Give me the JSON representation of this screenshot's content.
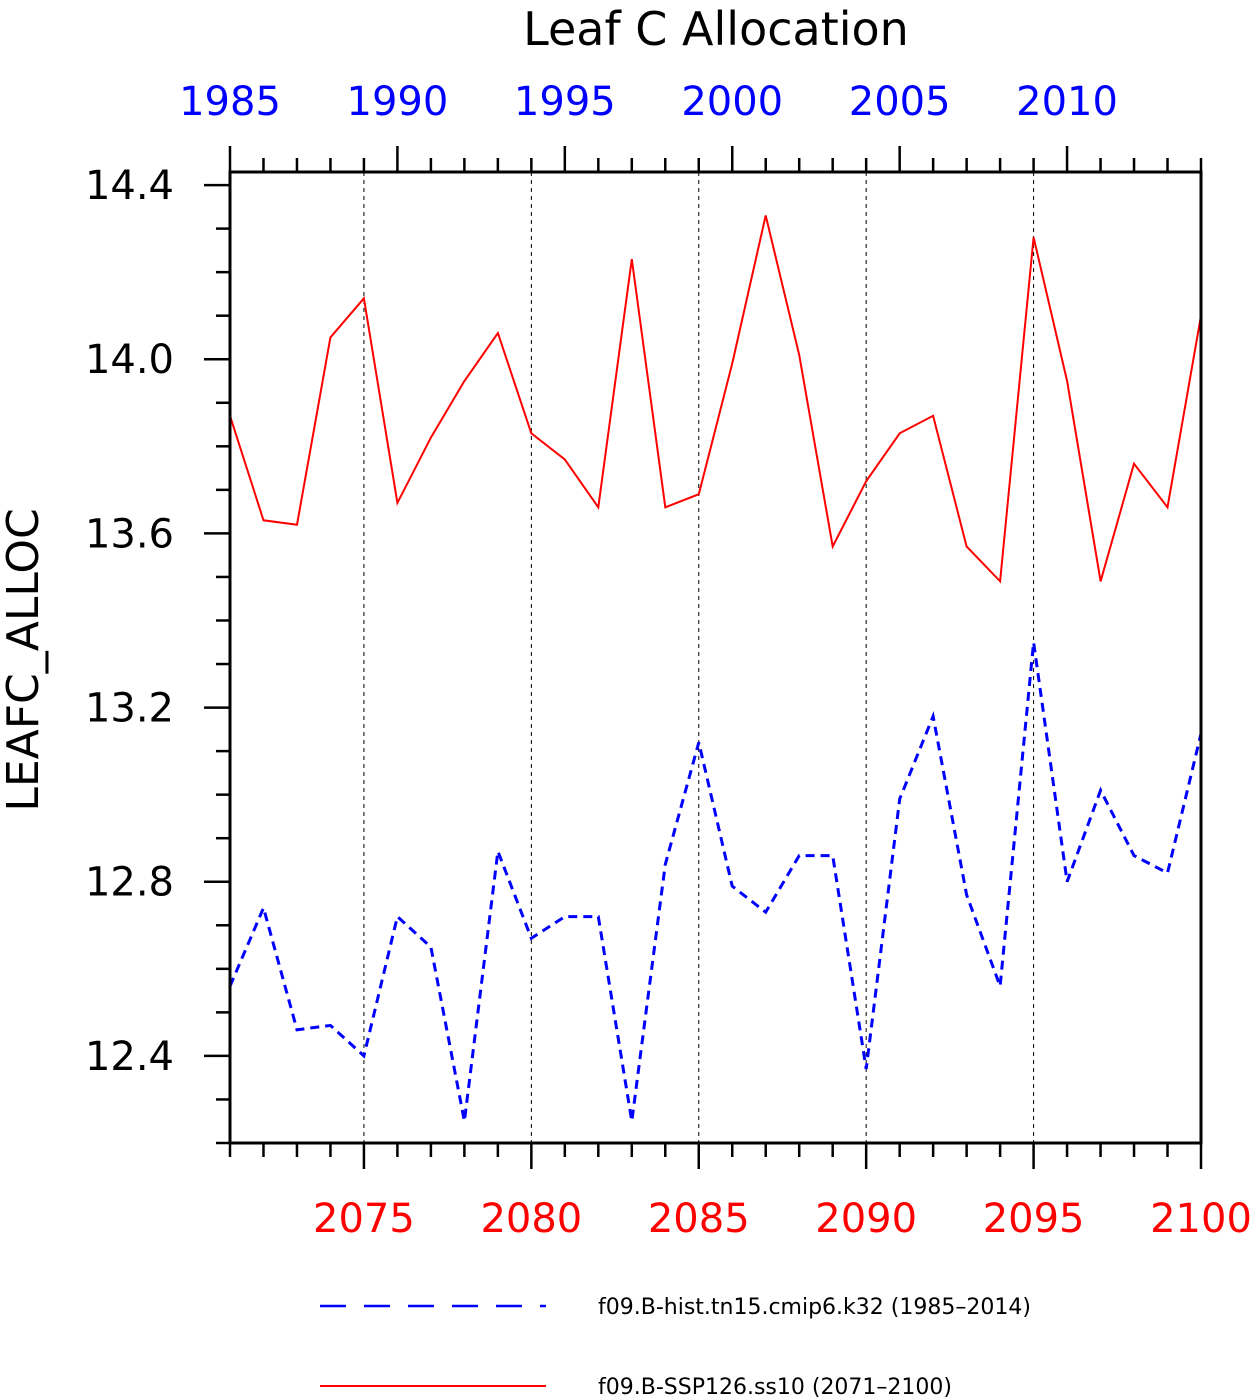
{
  "chart_data": {
    "type": "line",
    "title": "Leaf C Allocation",
    "ylabel": "LEAFC_ALLOC",
    "ylim": [
      12.2,
      14.43
    ],
    "yticks": [
      "12.4",
      "12.8",
      "13.2",
      "13.6",
      "14.0",
      "14.4"
    ],
    "x_bottom": {
      "range": [
        2071,
        2100
      ],
      "ticklabels": [
        "2075",
        "2080",
        "2085",
        "2090",
        "2095",
        "2100"
      ],
      "color": "#ff0000"
    },
    "x_top": {
      "range": [
        1985,
        2014
      ],
      "ticklabels": [
        "1985",
        "1990",
        "1995",
        "2000",
        "2005",
        "2010"
      ],
      "color": "#0000ff"
    },
    "grid": "vertical dotted at major bottom ticks",
    "legend_position": "bottom",
    "series": [
      {
        "name": "f09.B-hist.tn15.cmip6.k32 (1985–2014)",
        "color": "#0000ff",
        "style": "dashed",
        "x_axis": "top",
        "x": [
          1985,
          1986,
          1987,
          1988,
          1989,
          1990,
          1991,
          1992,
          1993,
          1994,
          1995,
          1996,
          1997,
          1998,
          1999,
          2000,
          2001,
          2002,
          2003,
          2004,
          2005,
          2006,
          2007,
          2008,
          2009,
          2010,
          2011,
          2012,
          2013,
          2014
        ],
        "values": [
          12.56,
          12.74,
          12.46,
          12.47,
          12.4,
          12.72,
          12.65,
          12.25,
          12.87,
          12.67,
          12.72,
          12.72,
          12.25,
          12.84,
          13.12,
          12.79,
          12.73,
          12.86,
          12.86,
          12.37,
          12.99,
          13.18,
          12.77,
          12.56,
          13.35,
          12.8,
          13.01,
          12.86,
          12.82,
          13.14
        ]
      },
      {
        "name": "f09.B-SSP126.ss10 (2071–2100)",
        "color": "#ff0000",
        "style": "solid",
        "x_axis": "bottom",
        "x": [
          2071,
          2072,
          2073,
          2074,
          2075,
          2076,
          2077,
          2078,
          2079,
          2080,
          2081,
          2082,
          2083,
          2084,
          2085,
          2086,
          2087,
          2088,
          2089,
          2090,
          2091,
          2092,
          2093,
          2094,
          2095,
          2096,
          2097,
          2098,
          2099,
          2100
        ],
        "values": [
          13.87,
          13.63,
          13.62,
          14.05,
          14.14,
          13.67,
          13.82,
          13.95,
          14.06,
          13.83,
          13.77,
          13.66,
          14.23,
          13.66,
          13.69,
          13.99,
          14.33,
          14.01,
          13.57,
          13.72,
          13.83,
          13.87,
          13.57,
          13.49,
          14.28,
          13.95,
          13.49,
          13.76,
          13.66,
          14.1
        ]
      }
    ]
  }
}
